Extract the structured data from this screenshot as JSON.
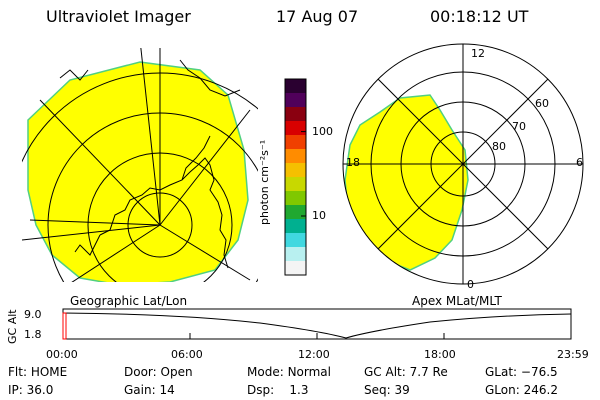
{
  "header": {
    "title": "Ultraviolet Imager",
    "date": "17 Aug 07",
    "time": "00:18:12 UT"
  },
  "geo_map": {
    "label": "Geographic Lat/Lon",
    "fill_color": "#ffff00"
  },
  "color_bar": {
    "unit_label": "photon cm⁻²s⁻¹",
    "tick_labels": [
      "100",
      "10"
    ],
    "tick_values": [
      100,
      10
    ],
    "value_range": [
      2,
      420
    ],
    "colors": [
      "#2a0030",
      "#50005a",
      "#8a0010",
      "#d80000",
      "#f04000",
      "#ff8c00",
      "#f5c000",
      "#c8d800",
      "#80c800",
      "#20a830",
      "#00b090",
      "#40d8e0",
      "#b8f0f0",
      "#f4f4f4"
    ]
  },
  "polar_map": {
    "label": "Apex MLat/MLT",
    "mlt_labels": {
      "top": "12",
      "left": "18",
      "right": "6",
      "bottom": "0"
    },
    "lat_labels": [
      "60",
      "70",
      "80"
    ],
    "fill_color": "#ffff00"
  },
  "gc_alt_plot": {
    "ylabel": "GC Alt",
    "y_ticks": [
      "9.0",
      "1.8"
    ],
    "x_ticks": [
      "00:00",
      "06:00",
      "12:00",
      "18:00",
      "23:59"
    ],
    "marker_color": "#ff0000"
  },
  "status": {
    "flt": {
      "label": "Flt:",
      "value": "HOME"
    },
    "ip": {
      "label": "IP:",
      "value": "36.0"
    },
    "door": {
      "label": "Door:",
      "value": "Open"
    },
    "gain": {
      "label": "Gain:",
      "value": "14"
    },
    "mode": {
      "label": "Mode:",
      "value": "Normal"
    },
    "dsp": {
      "label": "Dsp:",
      "value": "1.3"
    },
    "gcalt": {
      "label": "GC Alt:",
      "value": "7.7 Re"
    },
    "seq": {
      "label": "Seq:",
      "value": "39"
    },
    "glat": {
      "label": "GLat:",
      "value": "−76.5"
    },
    "glon": {
      "label": "GLon:",
      "value": "246.2"
    }
  }
}
